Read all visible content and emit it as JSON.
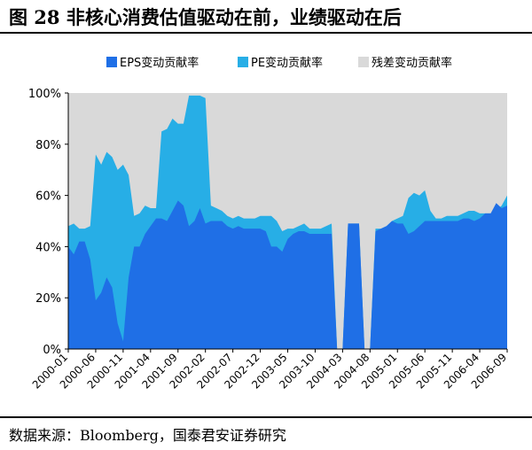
{
  "figure_title": "图 28 非核心消费估值驱动在前，业绩驱动在后",
  "source": "数据来源：Bloomberg，国泰君安证券研究",
  "colors": {
    "eps": "#1f6fe6",
    "pe": "#27aee6",
    "residual": "#d9d9d9"
  },
  "chart_data": {
    "type": "area",
    "title": "",
    "xlabel": "",
    "ylabel": "",
    "ylim": [
      0,
      100
    ],
    "y_ticks": [
      "0%",
      "20%",
      "40%",
      "60%",
      "80%",
      "100%"
    ],
    "legend_position": "top",
    "x_tick_labels": [
      "2000-01",
      "2000-06",
      "2000-11",
      "2001-04",
      "2001-09",
      "2002-02",
      "2002-07",
      "2002-12",
      "2003-05",
      "2003-10",
      "2004-03",
      "2004-08",
      "2005-01",
      "2005-06",
      "2005-11",
      "2006-04",
      "2006-09"
    ],
    "x_start": "2000-01",
    "x_end": "2006-09",
    "series": [
      {
        "name": "EPS变动贡献率",
        "values": [
          [
            0,
            40
          ],
          [
            1,
            37
          ],
          [
            2,
            42
          ],
          [
            3,
            42
          ],
          [
            4,
            35
          ],
          [
            5,
            19
          ],
          [
            6,
            22
          ],
          [
            7,
            28
          ],
          [
            8,
            24
          ],
          [
            9,
            10
          ],
          [
            10,
            3
          ],
          [
            11,
            28
          ],
          [
            12,
            40
          ],
          [
            13,
            40
          ],
          [
            14,
            45
          ],
          [
            15,
            48
          ],
          [
            16,
            51
          ],
          [
            17,
            51
          ],
          [
            18,
            50
          ],
          [
            19,
            54
          ],
          [
            20,
            58
          ],
          [
            21,
            56
          ],
          [
            22,
            48
          ],
          [
            23,
            50
          ],
          [
            24,
            55
          ],
          [
            25,
            49
          ],
          [
            26,
            50
          ],
          [
            27,
            50
          ],
          [
            28,
            50
          ],
          [
            29,
            48
          ],
          [
            30,
            47
          ],
          [
            31,
            48
          ],
          [
            32,
            47
          ],
          [
            33,
            47
          ],
          [
            34,
            47
          ],
          [
            35,
            47
          ],
          [
            36,
            46
          ],
          [
            37,
            40
          ],
          [
            38,
            40
          ],
          [
            39,
            38
          ],
          [
            40,
            43
          ],
          [
            41,
            45
          ],
          [
            42,
            46
          ],
          [
            43,
            46
          ],
          [
            44,
            45
          ],
          [
            45,
            45
          ],
          [
            46,
            45
          ],
          [
            47,
            45
          ],
          [
            48,
            45
          ],
          [
            49,
            0
          ],
          [
            50,
            0
          ],
          [
            51,
            49
          ],
          [
            52,
            49
          ],
          [
            53,
            49
          ],
          [
            54,
            0
          ],
          [
            55,
            0
          ],
          [
            56,
            46
          ],
          [
            57,
            47
          ],
          [
            58,
            48
          ],
          [
            59,
            50
          ],
          [
            60,
            49
          ],
          [
            61,
            49
          ],
          [
            62,
            45
          ],
          [
            63,
            46
          ],
          [
            64,
            48
          ],
          [
            65,
            50
          ],
          [
            66,
            50
          ],
          [
            67,
            50
          ],
          [
            68,
            50
          ],
          [
            69,
            50
          ],
          [
            70,
            50
          ],
          [
            71,
            50
          ],
          [
            72,
            51
          ],
          [
            73,
            51
          ],
          [
            74,
            50
          ],
          [
            75,
            51
          ],
          [
            76,
            53
          ],
          [
            77,
            53
          ],
          [
            78,
            57
          ],
          [
            79,
            55
          ],
          [
            80,
            56
          ]
        ]
      },
      {
        "name": "PE变动贡献率",
        "values": [
          [
            0,
            48
          ],
          [
            1,
            49
          ],
          [
            2,
            47
          ],
          [
            3,
            47
          ],
          [
            4,
            48
          ],
          [
            5,
            76
          ],
          [
            6,
            72
          ],
          [
            7,
            77
          ],
          [
            8,
            75
          ],
          [
            9,
            70
          ],
          [
            10,
            72
          ],
          [
            11,
            68
          ],
          [
            12,
            52
          ],
          [
            13,
            53
          ],
          [
            14,
            56
          ],
          [
            15,
            55
          ],
          [
            16,
            55
          ],
          [
            17,
            85
          ],
          [
            18,
            86
          ],
          [
            19,
            90
          ],
          [
            20,
            88
          ],
          [
            21,
            88
          ],
          [
            22,
            99
          ],
          [
            23,
            99
          ],
          [
            24,
            99
          ],
          [
            25,
            98
          ],
          [
            26,
            56
          ],
          [
            27,
            55
          ],
          [
            28,
            54
          ],
          [
            29,
            52
          ],
          [
            30,
            51
          ],
          [
            31,
            52
          ],
          [
            32,
            51
          ],
          [
            33,
            51
          ],
          [
            34,
            51
          ],
          [
            35,
            52
          ],
          [
            36,
            52
          ],
          [
            37,
            52
          ],
          [
            38,
            50
          ],
          [
            39,
            46
          ],
          [
            40,
            47
          ],
          [
            41,
            47
          ],
          [
            42,
            48
          ],
          [
            43,
            49
          ],
          [
            44,
            47
          ],
          [
            45,
            47
          ],
          [
            46,
            47
          ],
          [
            47,
            48
          ],
          [
            48,
            49
          ],
          [
            49,
            0
          ],
          [
            50,
            0
          ],
          [
            51,
            49
          ],
          [
            52,
            49
          ],
          [
            53,
            49
          ],
          [
            54,
            0
          ],
          [
            55,
            0
          ],
          [
            56,
            47
          ],
          [
            57,
            47
          ],
          [
            58,
            48
          ],
          [
            59,
            50
          ],
          [
            60,
            51
          ],
          [
            61,
            52
          ],
          [
            62,
            59
          ],
          [
            63,
            61
          ],
          [
            64,
            60
          ],
          [
            65,
            62
          ],
          [
            66,
            54
          ],
          [
            67,
            51
          ],
          [
            68,
            51
          ],
          [
            69,
            52
          ],
          [
            70,
            52
          ],
          [
            71,
            52
          ],
          [
            72,
            53
          ],
          [
            73,
            54
          ],
          [
            74,
            54
          ],
          [
            75,
            53
          ],
          [
            76,
            53
          ],
          [
            77,
            53
          ],
          [
            78,
            54
          ],
          [
            79,
            56
          ],
          [
            80,
            60
          ]
        ]
      },
      {
        "name": "残差变动贡献率",
        "values": [
          [
            0,
            100
          ],
          [
            80,
            100
          ]
        ]
      }
    ]
  }
}
